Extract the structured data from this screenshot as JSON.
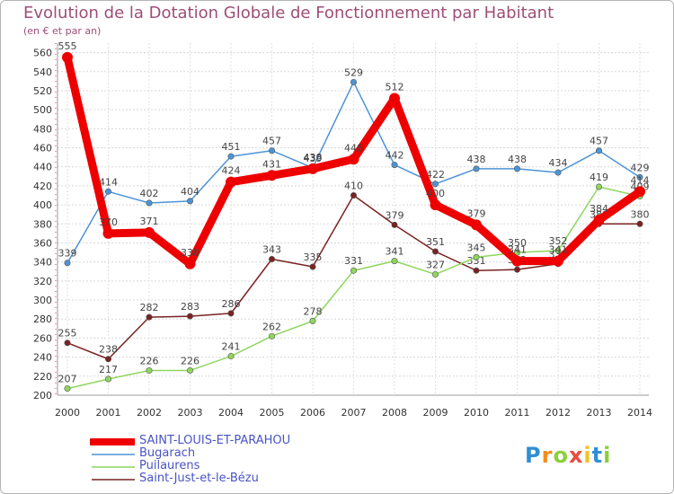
{
  "header": {
    "title": "Evolution de la Dotation Globale de Fonctionnement par Habitant",
    "subtitle": "(en € et par an)"
  },
  "chart_data": {
    "type": "line",
    "title": "Evolution de la Dotation Globale de Fonctionnement par Habitant",
    "ylabel": "(en € et par an)",
    "xlabel": "",
    "ylim": [
      200,
      570
    ],
    "yticks": [
      "200",
      "220",
      "240",
      "260",
      "280",
      "300",
      "320",
      "340",
      "360",
      "380",
      "400",
      "420",
      "440",
      "460",
      "480",
      "500",
      "520",
      "540",
      "560"
    ],
    "categories": [
      "2000",
      "2001",
      "2002",
      "2003",
      "2004",
      "2005",
      "2006",
      "2007",
      "2008",
      "2009",
      "2010",
      "2011",
      "2012",
      "2013",
      "2014"
    ],
    "grid": true,
    "series": [
      {
        "name": "Saint-Just-et-le-Bézu",
        "color": "#7a2222",
        "values": [
          255,
          238,
          282,
          283,
          286,
          343,
          335,
          410,
          379,
          351,
          331,
          332,
          338,
          380,
          380
        ],
        "labels": [
          "255",
          "238",
          "282",
          "283",
          "286",
          "343",
          "335",
          "410",
          "379",
          "351",
          "331",
          "332",
          "338",
          "380",
          "380"
        ]
      },
      {
        "name": "Puilaurens",
        "color": "#8fd65e",
        "values": [
          207,
          217,
          226,
          226,
          241,
          262,
          278,
          331,
          341,
          327,
          345,
          350,
          352,
          419,
          409
        ],
        "labels": [
          "207",
          "217",
          "226",
          "226",
          "241",
          "262",
          "278",
          "331",
          "341",
          "327",
          "345",
          "350",
          "352",
          "419",
          "409"
        ]
      },
      {
        "name": "Bugarach",
        "color": "#4d94d6",
        "values": [
          339,
          414,
          402,
          404,
          451,
          457,
          439,
          529,
          442,
          422,
          438,
          438,
          434,
          457,
          429
        ],
        "labels": [
          "339",
          "414",
          "402",
          "404",
          "451",
          "457",
          "439",
          "529",
          "442",
          "422",
          "438",
          "438",
          "434",
          "457",
          "429"
        ]
      },
      {
        "name": "SAINT-LOUIS-ET-PARAHOU",
        "color": "#ee0000",
        "values": [
          555,
          370,
          371,
          338,
          424,
          431,
          438,
          448,
          512,
          400,
          379,
          341,
          341,
          384,
          414
        ],
        "labels": [
          "555",
          "370",
          "371",
          "338",
          "424",
          "431",
          "438",
          "448",
          "512",
          "400",
          "379",
          "341",
          "341",
          "384",
          "414"
        ]
      }
    ]
  },
  "legend": [
    {
      "label": "SAINT-LOUIS-ET-PARAHOU",
      "color": "#ee0000"
    },
    {
      "label": "Bugarach",
      "color": "#4d94d6"
    },
    {
      "label": "Puilaurens",
      "color": "#8fd65e"
    },
    {
      "label": "Saint-Just-et-le-Bézu",
      "color": "#7a2222"
    }
  ],
  "logo": {
    "text": "Proxiti",
    "letters": [
      {
        "char": "P",
        "color": "#2f8fd6"
      },
      {
        "char": "r",
        "color": "#f28c1e"
      },
      {
        "char": "o",
        "color": "#8ccf3a"
      },
      {
        "char": "x",
        "color": "#e84d3d"
      },
      {
        "char": "i",
        "color": "#f2c21e"
      },
      {
        "char": "t",
        "color": "#2f8fd6"
      },
      {
        "char": "i",
        "color": "#8ccf3a"
      }
    ]
  }
}
